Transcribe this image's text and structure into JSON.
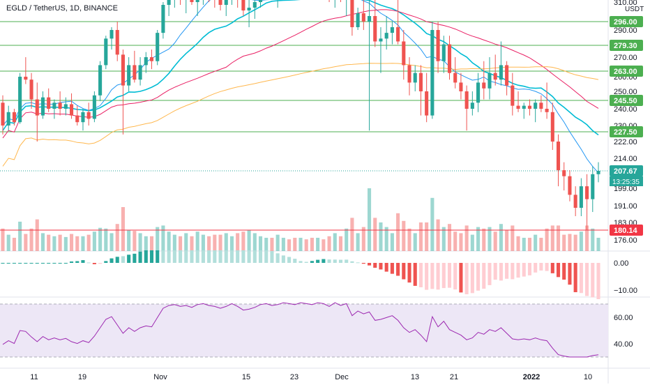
{
  "header": {
    "symbol_title": "EGLD / TetherUS, 1D, BINANCE",
    "currency": "USDT"
  },
  "price_axis": {
    "ticks": [
      "310.00",
      "290.00",
      "270.00",
      "260.00",
      "250.00",
      "240.00",
      "230.00",
      "222.00",
      "214.00",
      "199.00",
      "191.00",
      "183.00",
      "176.00"
    ],
    "highlighted": [
      {
        "label": "296.00",
        "value": 296,
        "kind": "level"
      },
      {
        "label": "279.30",
        "value": 279.3,
        "kind": "level"
      },
      {
        "label": "263.00",
        "value": 263,
        "kind": "level"
      },
      {
        "label": "245.50",
        "value": 245.5,
        "kind": "level"
      },
      {
        "label": "227.50",
        "value": 227.5,
        "kind": "level"
      },
      {
        "label": "207.67",
        "value": 207.67,
        "kind": "last"
      },
      {
        "label": "180.14",
        "value": 180.14,
        "kind": "support"
      }
    ],
    "countdown": "13:25:35"
  },
  "macd_axis": {
    "ticks": [
      "0.00",
      "−10.00"
    ]
  },
  "rsi_axis": {
    "ticks": [
      "60.00",
      "40.00"
    ]
  },
  "time_axis": {
    "labels": [
      "11",
      "19",
      "Nov",
      "15",
      "23",
      "Dec",
      "13",
      "21",
      "2022",
      "10"
    ]
  },
  "colors": {
    "up": "#26a69a",
    "down": "#ef5350",
    "level": "#4caf50",
    "support": "#f23645",
    "last": "#26a69a",
    "ma_fast": "#2196f3",
    "ma_mid": "#00bcd4",
    "ma_slow": "#e91e63",
    "ma_long": "#ffb74d",
    "rsi": "#9c27b0",
    "rsi_band": "#ede7f6"
  },
  "chart_data": {
    "type": "candlestick",
    "title": "EGLD / TetherUS, 1D, BINANCE",
    "y_unit": "USDT",
    "y_tick_values": [
      310,
      290,
      270,
      260,
      250,
      240,
      230,
      222,
      214,
      199,
      191,
      183,
      176
    ],
    "x_date_labels": [
      "11",
      "19",
      "Nov",
      "15",
      "23",
      "Dec",
      "13",
      "21",
      "2022",
      "10"
    ],
    "horizontal_levels": [
      296,
      279.3,
      263,
      245.5,
      227.5,
      180.14
    ],
    "last_price": 207.67,
    "daily_candles": [
      {
        "o": 244,
        "h": 248,
        "l": 226,
        "c": 230
      },
      {
        "o": 230,
        "h": 242,
        "l": 228,
        "c": 238
      },
      {
        "o": 238,
        "h": 240,
        "l": 230,
        "c": 232
      },
      {
        "o": 232,
        "h": 262,
        "l": 231,
        "c": 260
      },
      {
        "o": 260,
        "h": 270,
        "l": 255,
        "c": 258
      },
      {
        "o": 258,
        "h": 262,
        "l": 240,
        "c": 246
      },
      {
        "o": 246,
        "h": 256,
        "l": 222,
        "c": 236
      },
      {
        "o": 236,
        "h": 250,
        "l": 234,
        "c": 247
      },
      {
        "o": 247,
        "h": 252,
        "l": 238,
        "c": 240
      },
      {
        "o": 240,
        "h": 246,
        "l": 234,
        "c": 244
      },
      {
        "o": 244,
        "h": 250,
        "l": 236,
        "c": 240
      },
      {
        "o": 240,
        "h": 247,
        "l": 236,
        "c": 243
      },
      {
        "o": 243,
        "h": 249,
        "l": 234,
        "c": 236
      },
      {
        "o": 236,
        "h": 242,
        "l": 230,
        "c": 232
      },
      {
        "o": 232,
        "h": 240,
        "l": 228,
        "c": 238
      },
      {
        "o": 238,
        "h": 244,
        "l": 230,
        "c": 234
      },
      {
        "o": 234,
        "h": 250,
        "l": 232,
        "c": 248
      },
      {
        "o": 248,
        "h": 268,
        "l": 245,
        "c": 266
      },
      {
        "o": 266,
        "h": 286,
        "l": 264,
        "c": 284
      },
      {
        "o": 284,
        "h": 292,
        "l": 276,
        "c": 290
      },
      {
        "o": 290,
        "h": 296,
        "l": 268,
        "c": 272
      },
      {
        "o": 272,
        "h": 276,
        "l": 226,
        "c": 254
      },
      {
        "o": 254,
        "h": 270,
        "l": 250,
        "c": 266
      },
      {
        "o": 266,
        "h": 275,
        "l": 256,
        "c": 258
      },
      {
        "o": 258,
        "h": 270,
        "l": 254,
        "c": 266
      },
      {
        "o": 266,
        "h": 274,
        "l": 262,
        "c": 270
      },
      {
        "o": 270,
        "h": 276,
        "l": 264,
        "c": 268
      },
      {
        "o": 268,
        "h": 290,
        "l": 266,
        "c": 288
      },
      {
        "o": 288,
        "h": 310,
        "l": 284,
        "c": 308
      },
      {
        "o": 308,
        "h": 318,
        "l": 300,
        "c": 314
      },
      {
        "o": 314,
        "h": 320,
        "l": 306,
        "c": 316
      },
      {
        "o": 316,
        "h": 320,
        "l": 308,
        "c": 312
      },
      {
        "o": 312,
        "h": 318,
        "l": 302,
        "c": 314
      },
      {
        "o": 314,
        "h": 320,
        "l": 308,
        "c": 310
      },
      {
        "o": 310,
        "h": 318,
        "l": 300,
        "c": 316
      },
      {
        "o": 316,
        "h": 322,
        "l": 308,
        "c": 318
      },
      {
        "o": 318,
        "h": 322,
        "l": 310,
        "c": 314
      },
      {
        "o": 314,
        "h": 320,
        "l": 306,
        "c": 312
      },
      {
        "o": 312,
        "h": 318,
        "l": 304,
        "c": 308
      },
      {
        "o": 308,
        "h": 316,
        "l": 300,
        "c": 312
      },
      {
        "o": 312,
        "h": 320,
        "l": 308,
        "c": 318
      },
      {
        "o": 318,
        "h": 322,
        "l": 306,
        "c": 312
      },
      {
        "o": 312,
        "h": 318,
        "l": 300,
        "c": 304
      },
      {
        "o": 304,
        "h": 312,
        "l": 292,
        "c": 306
      },
      {
        "o": 306,
        "h": 314,
        "l": 298,
        "c": 310
      },
      {
        "o": 310,
        "h": 318,
        "l": 306,
        "c": 316
      },
      {
        "o": 316,
        "h": 322,
        "l": 312,
        "c": 318
      },
      {
        "o": 318,
        "h": 322,
        "l": 312,
        "c": 314
      },
      {
        "o": 314,
        "h": 320,
        "l": 306,
        "c": 316
      },
      {
        "o": 316,
        "h": 322,
        "l": 312,
        "c": 320
      },
      {
        "o": 320,
        "h": 322,
        "l": 314,
        "c": 318
      },
      {
        "o": 318,
        "h": 322,
        "l": 312,
        "c": 316
      },
      {
        "o": 316,
        "h": 322,
        "l": 312,
        "c": 320
      },
      {
        "o": 320,
        "h": 322,
        "l": 314,
        "c": 318
      },
      {
        "o": 318,
        "h": 322,
        "l": 312,
        "c": 316
      },
      {
        "o": 316,
        "h": 322,
        "l": 312,
        "c": 320
      },
      {
        "o": 320,
        "h": 322,
        "l": 314,
        "c": 318
      },
      {
        "o": 318,
        "h": 322,
        "l": 310,
        "c": 312
      },
      {
        "o": 312,
        "h": 322,
        "l": 306,
        "c": 320
      },
      {
        "o": 320,
        "h": 322,
        "l": 310,
        "c": 314
      },
      {
        "o": 314,
        "h": 322,
        "l": 300,
        "c": 318
      },
      {
        "o": 318,
        "h": 322,
        "l": 286,
        "c": 292
      },
      {
        "o": 292,
        "h": 306,
        "l": 290,
        "c": 302
      },
      {
        "o": 302,
        "h": 314,
        "l": 290,
        "c": 296
      },
      {
        "o": 296,
        "h": 322,
        "l": 228,
        "c": 300
      },
      {
        "o": 300,
        "h": 314,
        "l": 278,
        "c": 282
      },
      {
        "o": 282,
        "h": 292,
        "l": 262,
        "c": 284
      },
      {
        "o": 284,
        "h": 300,
        "l": 276,
        "c": 288
      },
      {
        "o": 288,
        "h": 296,
        "l": 280,
        "c": 292
      },
      {
        "o": 292,
        "h": 322,
        "l": 280,
        "c": 282
      },
      {
        "o": 282,
        "h": 290,
        "l": 258,
        "c": 266
      },
      {
        "o": 266,
        "h": 270,
        "l": 248,
        "c": 256
      },
      {
        "o": 256,
        "h": 266,
        "l": 250,
        "c": 262
      },
      {
        "o": 262,
        "h": 266,
        "l": 236,
        "c": 250
      },
      {
        "o": 250,
        "h": 262,
        "l": 232,
        "c": 236
      },
      {
        "o": 236,
        "h": 296,
        "l": 234,
        "c": 290
      },
      {
        "o": 290,
        "h": 296,
        "l": 262,
        "c": 268
      },
      {
        "o": 268,
        "h": 286,
        "l": 262,
        "c": 280
      },
      {
        "o": 280,
        "h": 286,
        "l": 258,
        "c": 262
      },
      {
        "o": 262,
        "h": 270,
        "l": 252,
        "c": 256
      },
      {
        "o": 256,
        "h": 262,
        "l": 246,
        "c": 250
      },
      {
        "o": 250,
        "h": 254,
        "l": 228,
        "c": 240
      },
      {
        "o": 240,
        "h": 250,
        "l": 236,
        "c": 244
      },
      {
        "o": 244,
        "h": 262,
        "l": 238,
        "c": 256
      },
      {
        "o": 256,
        "h": 268,
        "l": 246,
        "c": 252
      },
      {
        "o": 252,
        "h": 270,
        "l": 246,
        "c": 262
      },
      {
        "o": 262,
        "h": 272,
        "l": 254,
        "c": 258
      },
      {
        "o": 258,
        "h": 282,
        "l": 254,
        "c": 266
      },
      {
        "o": 266,
        "h": 268,
        "l": 248,
        "c": 254
      },
      {
        "o": 254,
        "h": 262,
        "l": 236,
        "c": 242
      },
      {
        "o": 242,
        "h": 250,
        "l": 238,
        "c": 240
      },
      {
        "o": 240,
        "h": 244,
        "l": 234,
        "c": 242
      },
      {
        "o": 242,
        "h": 246,
        "l": 236,
        "c": 240
      },
      {
        "o": 240,
        "h": 246,
        "l": 232,
        "c": 244
      },
      {
        "o": 244,
        "h": 248,
        "l": 238,
        "c": 240
      },
      {
        "o": 240,
        "h": 256,
        "l": 234,
        "c": 238
      },
      {
        "o": 238,
        "h": 244,
        "l": 218,
        "c": 222
      },
      {
        "o": 222,
        "h": 226,
        "l": 200,
        "c": 208
      },
      {
        "o": 208,
        "h": 212,
        "l": 198,
        "c": 205
      },
      {
        "o": 205,
        "h": 208,
        "l": 193,
        "c": 196
      },
      {
        "o": 196,
        "h": 200,
        "l": 186,
        "c": 190
      },
      {
        "o": 190,
        "h": 204,
        "l": 186,
        "c": 200
      },
      {
        "o": 200,
        "h": 206,
        "l": 180,
        "c": 194
      },
      {
        "o": 194,
        "h": 210,
        "l": 188,
        "c": 206
      },
      {
        "o": 206,
        "h": 212,
        "l": 202,
        "c": 207.67
      }
    ],
    "rsi_levels": [
      70,
      30
    ]
  }
}
